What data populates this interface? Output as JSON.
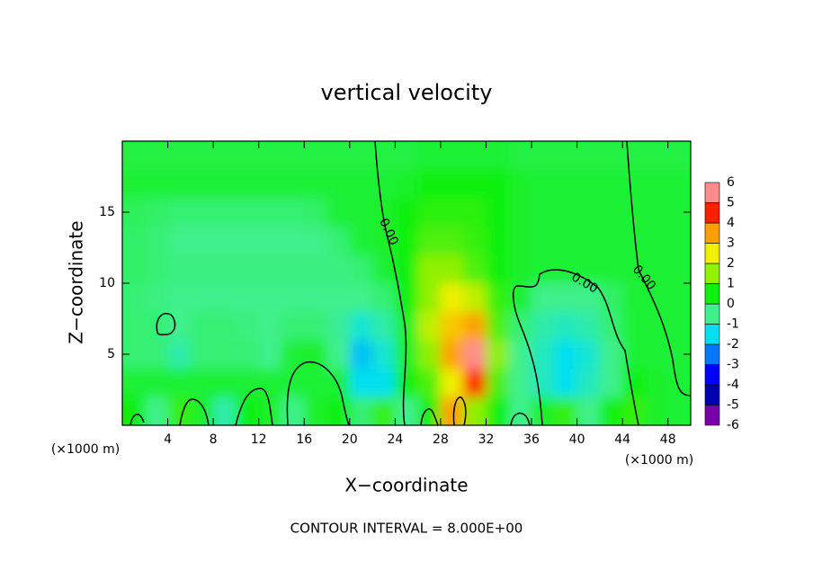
{
  "chart_data": {
    "type": "contour",
    "title": "vertical velocity",
    "x_label": "X−coordinate",
    "y_label": "Z−coordinate",
    "x_unit": "(×1000 m)",
    "y_unit": "(×1000 m)",
    "footer": "CONTOUR INTERVAL = 8.000E+00",
    "x": [
      1,
      3,
      5,
      7,
      9,
      11,
      13,
      15,
      17,
      19,
      21,
      23,
      25,
      27,
      29,
      31,
      33,
      35,
      37,
      39,
      41,
      43,
      45,
      47,
      49
    ],
    "z": [
      1,
      3,
      5,
      7,
      9,
      11,
      13,
      15,
      17,
      19
    ],
    "values": [
      [
        0.5,
        -0.5,
        0.8,
        0.3,
        -0.8,
        0.5,
        0.3,
        -0.5,
        0.3,
        0.5,
        -0.3,
        0.8,
        -0.5,
        0.5,
        3.5,
        1.5,
        0.5,
        -0.5,
        0.3,
        0.8,
        -0.5,
        0.5,
        0.8,
        0.3,
        0.2
      ],
      [
        0.2,
        0.2,
        0.2,
        0.2,
        0.2,
        0.2,
        0.2,
        0.2,
        0.2,
        0.2,
        -1.5,
        -1.5,
        0.5,
        1,
        2.5,
        4.5,
        1,
        -0.5,
        -1,
        -1.5,
        -1,
        -0.5,
        0.5,
        0.3,
        0.2
      ],
      [
        -0.3,
        -0.3,
        -0.8,
        -0.3,
        -0.3,
        -0.3,
        -0.5,
        0.2,
        0.3,
        -0.5,
        -1.8,
        -1.2,
        0.3,
        1.5,
        3.5,
        5.5,
        1.5,
        -0.5,
        -1,
        -1.5,
        -1.2,
        -0.5,
        0.2,
        0.2,
        0.2
      ],
      [
        -0.3,
        -0.3,
        -0.5,
        -0.3,
        -0.3,
        -0.4,
        -0.5,
        -0.3,
        -0.3,
        -0.6,
        -1.2,
        -0.8,
        0.3,
        2,
        3,
        3.5,
        1,
        -0.3,
        -0.8,
        -1,
        -0.8,
        -0.3,
        0.2,
        0.2,
        0.2
      ],
      [
        -0.3,
        -0.4,
        -0.5,
        -0.5,
        -0.5,
        -0.5,
        -0.5,
        -0.5,
        -0.5,
        -0.5,
        -0.5,
        -0.3,
        0.5,
        1.5,
        2.5,
        2,
        0.8,
        0.2,
        -0.5,
        -0.5,
        -0.5,
        -0.2,
        0.2,
        0.2,
        0.2
      ],
      [
        -0.2,
        -0.3,
        -0.4,
        -0.4,
        -0.4,
        -0.4,
        -0.4,
        -0.4,
        -0.4,
        -0.4,
        -0.3,
        0.2,
        0.5,
        1.5,
        1.5,
        1,
        0.5,
        0.3,
        0.2,
        0.2,
        0.2,
        0.2,
        0.2,
        0.2,
        0.2
      ],
      [
        -0.2,
        -0.3,
        -0.5,
        -0.5,
        -0.5,
        -0.5,
        -0.5,
        -0.5,
        -0.5,
        -0.3,
        0.2,
        0.3,
        0.5,
        1,
        1,
        0.8,
        0.5,
        0.3,
        0.2,
        0.2,
        0.2,
        0.2,
        0.2,
        0.2,
        0.2
      ],
      [
        -0.1,
        -0.2,
        -0.3,
        -0.3,
        -0.3,
        -0.3,
        -0.3,
        -0.3,
        -0.2,
        0.2,
        0.2,
        0.3,
        0.5,
        0.7,
        0.7,
        0.7,
        0.5,
        0.3,
        0.2,
        0.2,
        0.2,
        0.2,
        0.2,
        0.2,
        0.2
      ],
      [
        0.2,
        0.2,
        0.2,
        0.2,
        0.2,
        0.2,
        0.2,
        0.2,
        0.2,
        0.2,
        0.2,
        0.2,
        0.3,
        0.5,
        0.5,
        0.5,
        0.5,
        0.3,
        0.2,
        0.2,
        0.2,
        0.2,
        0.2,
        0.2,
        0.2
      ],
      [
        0.1,
        0.1,
        0.1,
        0.1,
        0.1,
        0.1,
        0.1,
        0.1,
        0.1,
        0.1,
        0.1,
        0.1,
        0.1,
        0.2,
        0.2,
        0.2,
        0.2,
        0.1,
        0.1,
        0.1,
        0.1,
        0.1,
        0.1,
        0.1,
        0.1
      ]
    ],
    "xlim": [
      0,
      50
    ],
    "ylim": [
      0,
      20
    ],
    "xticks": [
      4,
      8,
      12,
      16,
      20,
      24,
      28,
      32,
      36,
      40,
      44,
      48
    ],
    "yticks": [
      5,
      10,
      15
    ],
    "colorbar": {
      "levels": [
        -6,
        -5,
        -4,
        -3,
        -2,
        -1,
        0,
        1,
        2,
        3,
        4,
        5,
        6
      ],
      "colors": [
        "#7800a8",
        "#0000b0",
        "#0000ff",
        "#0078ff",
        "#00e0f0",
        "#40f08c",
        "#10f010",
        "#90f000",
        "#f0f000",
        "#ffa000",
        "#ff2000",
        "#ff8c8c"
      ]
    },
    "contour_levels": [
      {
        "value": 0,
        "label": "0.00"
      }
    ]
  }
}
